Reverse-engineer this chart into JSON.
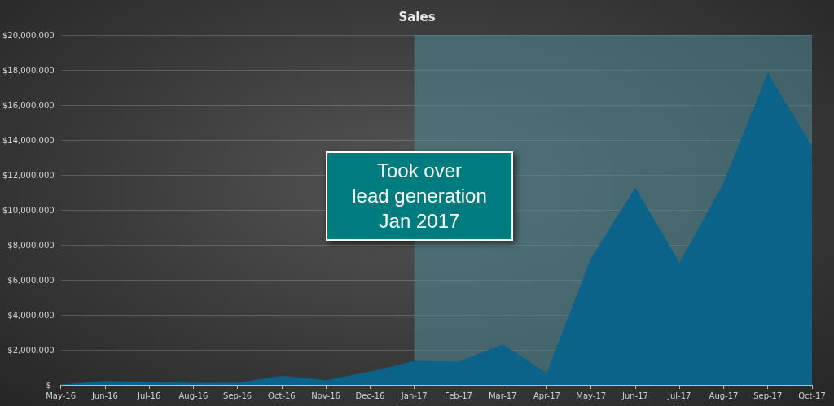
{
  "chart_data": {
    "type": "area",
    "title": "Sales",
    "categories": [
      "May-16",
      "Jun-16",
      "Jul-16",
      "Aug-16",
      "Sep-16",
      "Oct-16",
      "Nov-16",
      "Dec-16",
      "Jan-17",
      "Feb-17",
      "Mar-17",
      "Apr-17",
      "May-17",
      "Jun-17",
      "Jul-17",
      "Aug-17",
      "Sep-17",
      "Oct-17"
    ],
    "series": [
      {
        "color": "#0b6389",
        "values": [
          0,
          200000,
          150000,
          100000,
          100000,
          500000,
          250000,
          750000,
          1350000,
          1300000,
          2300000,
          650000,
          7200000,
          11250000,
          6950000,
          11500000,
          17800000,
          13600000
        ]
      }
    ],
    "ylim": [
      0,
      20000000
    ],
    "yticks": [
      {
        "value": 0,
        "label": "$-"
      },
      {
        "value": 2000000,
        "label": "$2,000,000"
      },
      {
        "value": 4000000,
        "label": "$4,000,000"
      },
      {
        "value": 6000000,
        "label": "$6,000,000"
      },
      {
        "value": 8000000,
        "label": "$8,000,000"
      },
      {
        "value": 10000000,
        "label": "$10,000,000"
      },
      {
        "value": 12000000,
        "label": "$12,000,000"
      },
      {
        "value": 14000000,
        "label": "$14,000,000"
      },
      {
        "value": 16000000,
        "label": "$16,000,000"
      },
      {
        "value": 18000000,
        "label": "$18,000,000"
      },
      {
        "value": 20000000,
        "label": "$20,000,000"
      }
    ],
    "bands": [
      {
        "axis": "x",
        "from": "Jan-17",
        "to": "Oct-17",
        "color": "#4f8a96"
      }
    ],
    "annotations": [
      "Took over\nlead generation\nJan 2017"
    ],
    "grid": "y",
    "marker": "none"
  }
}
